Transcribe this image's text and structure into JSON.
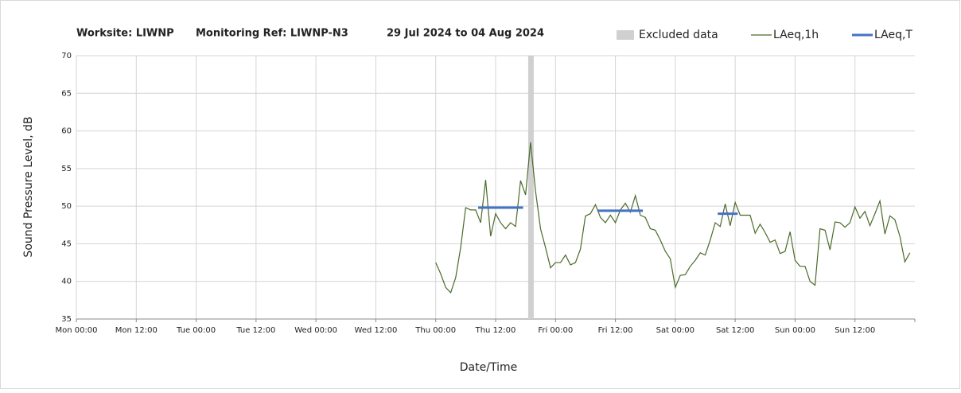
{
  "chart_data": {
    "type": "line",
    "title_parts": [
      "Worksite: LIWNP",
      "Monitoring Ref: LIWNP-N3",
      "29 Jul 2024 to 04 Aug 2024"
    ],
    "xlabel": "Date/Time",
    "ylabel": "Sound Pressure Level, dB",
    "xlim": [
      0,
      168
    ],
    "ylim": [
      35,
      70
    ],
    "yticks": [
      35,
      40,
      45,
      50,
      55,
      60,
      65,
      70
    ],
    "xticks": [
      {
        "value": 0,
        "label": "Mon 00:00"
      },
      {
        "value": 12,
        "label": "Mon 12:00"
      },
      {
        "value": 24,
        "label": "Tue 00:00"
      },
      {
        "value": 36,
        "label": "Tue 12:00"
      },
      {
        "value": 48,
        "label": "Wed 00:00"
      },
      {
        "value": 60,
        "label": "Wed 12:00"
      },
      {
        "value": 72,
        "label": "Thu 00:00"
      },
      {
        "value": 84,
        "label": "Thu 12:00"
      },
      {
        "value": 96,
        "label": "Fri 00:00"
      },
      {
        "value": 108,
        "label": "Fri 12:00"
      },
      {
        "value": 120,
        "label": "Sat 00:00"
      },
      {
        "value": 132,
        "label": "Sat 12:00"
      },
      {
        "value": 144,
        "label": "Sun 00:00"
      },
      {
        "value": 156,
        "label": "Sun 12:00"
      }
    ],
    "grid": true,
    "excluded": {
      "name": "Excluded data",
      "color": "#d0d0d0",
      "xrange": [
        91,
        92
      ]
    },
    "series": [
      {
        "name": "LAeq,1h",
        "color": "#4a6b2a",
        "x": [
          72,
          73,
          74,
          75,
          76,
          77,
          78,
          79,
          80,
          81,
          82,
          83,
          84,
          85,
          86,
          87,
          88,
          89,
          90,
          91,
          92,
          93,
          94,
          95,
          96,
          97,
          98,
          99,
          100,
          101,
          102,
          103,
          104,
          105,
          106,
          107,
          108,
          109,
          110,
          111,
          112,
          113,
          114,
          115,
          116,
          117,
          118,
          119,
          120,
          121,
          122,
          123,
          124,
          125,
          126,
          127,
          128,
          129,
          130,
          131,
          132,
          133,
          134,
          135,
          136,
          137,
          138,
          139,
          140,
          141,
          142,
          143,
          144,
          145,
          146,
          147,
          148,
          149,
          150,
          151,
          152,
          153,
          154,
          155,
          156,
          157,
          158,
          159,
          160,
          161,
          162,
          163,
          164,
          165,
          166,
          167
        ],
        "values": [
          42.5,
          41,
          39.2,
          38.5,
          40.5,
          44.5,
          49.8,
          49.5,
          49.5,
          47.8,
          53.5,
          46,
          49,
          47.8,
          47,
          47.8,
          47.3,
          53.4,
          51.5,
          58.5,
          52,
          47,
          44.5,
          41.8,
          42.5,
          42.5,
          43.5,
          42.2,
          42.5,
          44.3,
          48.7,
          49,
          50.2,
          48.5,
          47.8,
          48.8,
          47.8,
          49.5,
          50.4,
          49.2,
          51.4,
          48.8,
          48.5,
          47,
          46.8,
          45.5,
          44,
          43,
          39.2,
          40.8,
          40.9,
          42,
          42.8,
          43.8,
          43.5,
          45.5,
          47.8,
          47.3,
          50.3,
          47.4,
          50.5,
          48.8,
          48.8,
          48.8,
          46.4,
          47.6,
          46.5,
          45.2,
          45.5,
          43.7,
          44,
          46.6,
          42.8,
          42,
          42,
          40,
          39.5,
          47,
          46.8,
          44.2,
          47.9,
          47.8,
          47.2,
          47.8,
          49.9,
          48.4,
          49.3,
          47.4,
          49,
          50.7,
          46.3,
          48.7,
          48.2,
          46,
          42.6,
          43.8
        ]
      },
      {
        "name": "LAeq,T",
        "color": "#4472c4",
        "segments": [
          {
            "x": [
              80.5,
              89.5
            ],
            "value": 49.8
          },
          {
            "x": [
              104.5,
              113.5
            ],
            "value": 49.4
          },
          {
            "x": [
              128.5,
              132.5
            ],
            "value": 49.0
          }
        ]
      }
    ]
  }
}
